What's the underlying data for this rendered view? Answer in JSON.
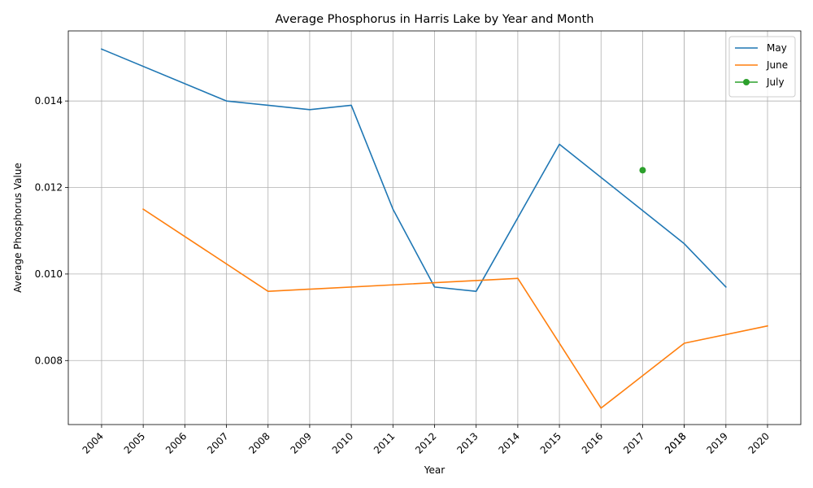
{
  "chart_data": {
    "type": "line",
    "title": "Average Phosphorus in Harris Lake by Year and Month",
    "xlabel": "Year",
    "ylabel": "Average Phosphorus Value",
    "xlim": [
      2003.2,
      2020.8
    ],
    "ylim": [
      0.00652,
      0.01562
    ],
    "x_ticks": [
      "2004",
      "2005",
      "2006",
      "2007",
      "2008",
      "2009",
      "2010",
      "2011",
      "2012",
      "2013",
      "2014",
      "2015",
      "2016",
      "2017",
      "2018",
      "2018",
      "2019",
      "2020"
    ],
    "x_tick_values": [
      2004,
      2005,
      2006,
      2007,
      2008,
      2009,
      2010,
      2011,
      2012,
      2013,
      2014,
      2015,
      2016,
      2017,
      2018,
      2018,
      2019,
      2020
    ],
    "y_ticks": [
      "0.008",
      "0.010",
      "0.012",
      "0.014"
    ],
    "y_tick_values": [
      0.008,
      0.01,
      0.012,
      0.014
    ],
    "grid": true,
    "legend_position": "top-right",
    "series": [
      {
        "name": "May",
        "color": "#1f77b4",
        "marker": "none",
        "x": [
          2004,
          2007,
          2008,
          2009,
          2010,
          2011,
          2012,
          2013,
          2015,
          2018,
          2019
        ],
        "y": [
          0.0152,
          0.014,
          0.0139,
          0.0138,
          0.0139,
          0.0115,
          0.0097,
          0.0096,
          0.013,
          0.0107,
          0.0097
        ]
      },
      {
        "name": "June",
        "color": "#ff7f0e",
        "marker": "none",
        "x": [
          2005,
          2008,
          2014,
          2016,
          2018,
          2020
        ],
        "y": [
          0.0115,
          0.0096,
          0.0099,
          0.0069,
          0.0084,
          0.0088
        ]
      },
      {
        "name": "July",
        "color": "#2ca02c",
        "marker": "circle",
        "x": [
          2017
        ],
        "y": [
          0.0124
        ]
      }
    ]
  }
}
